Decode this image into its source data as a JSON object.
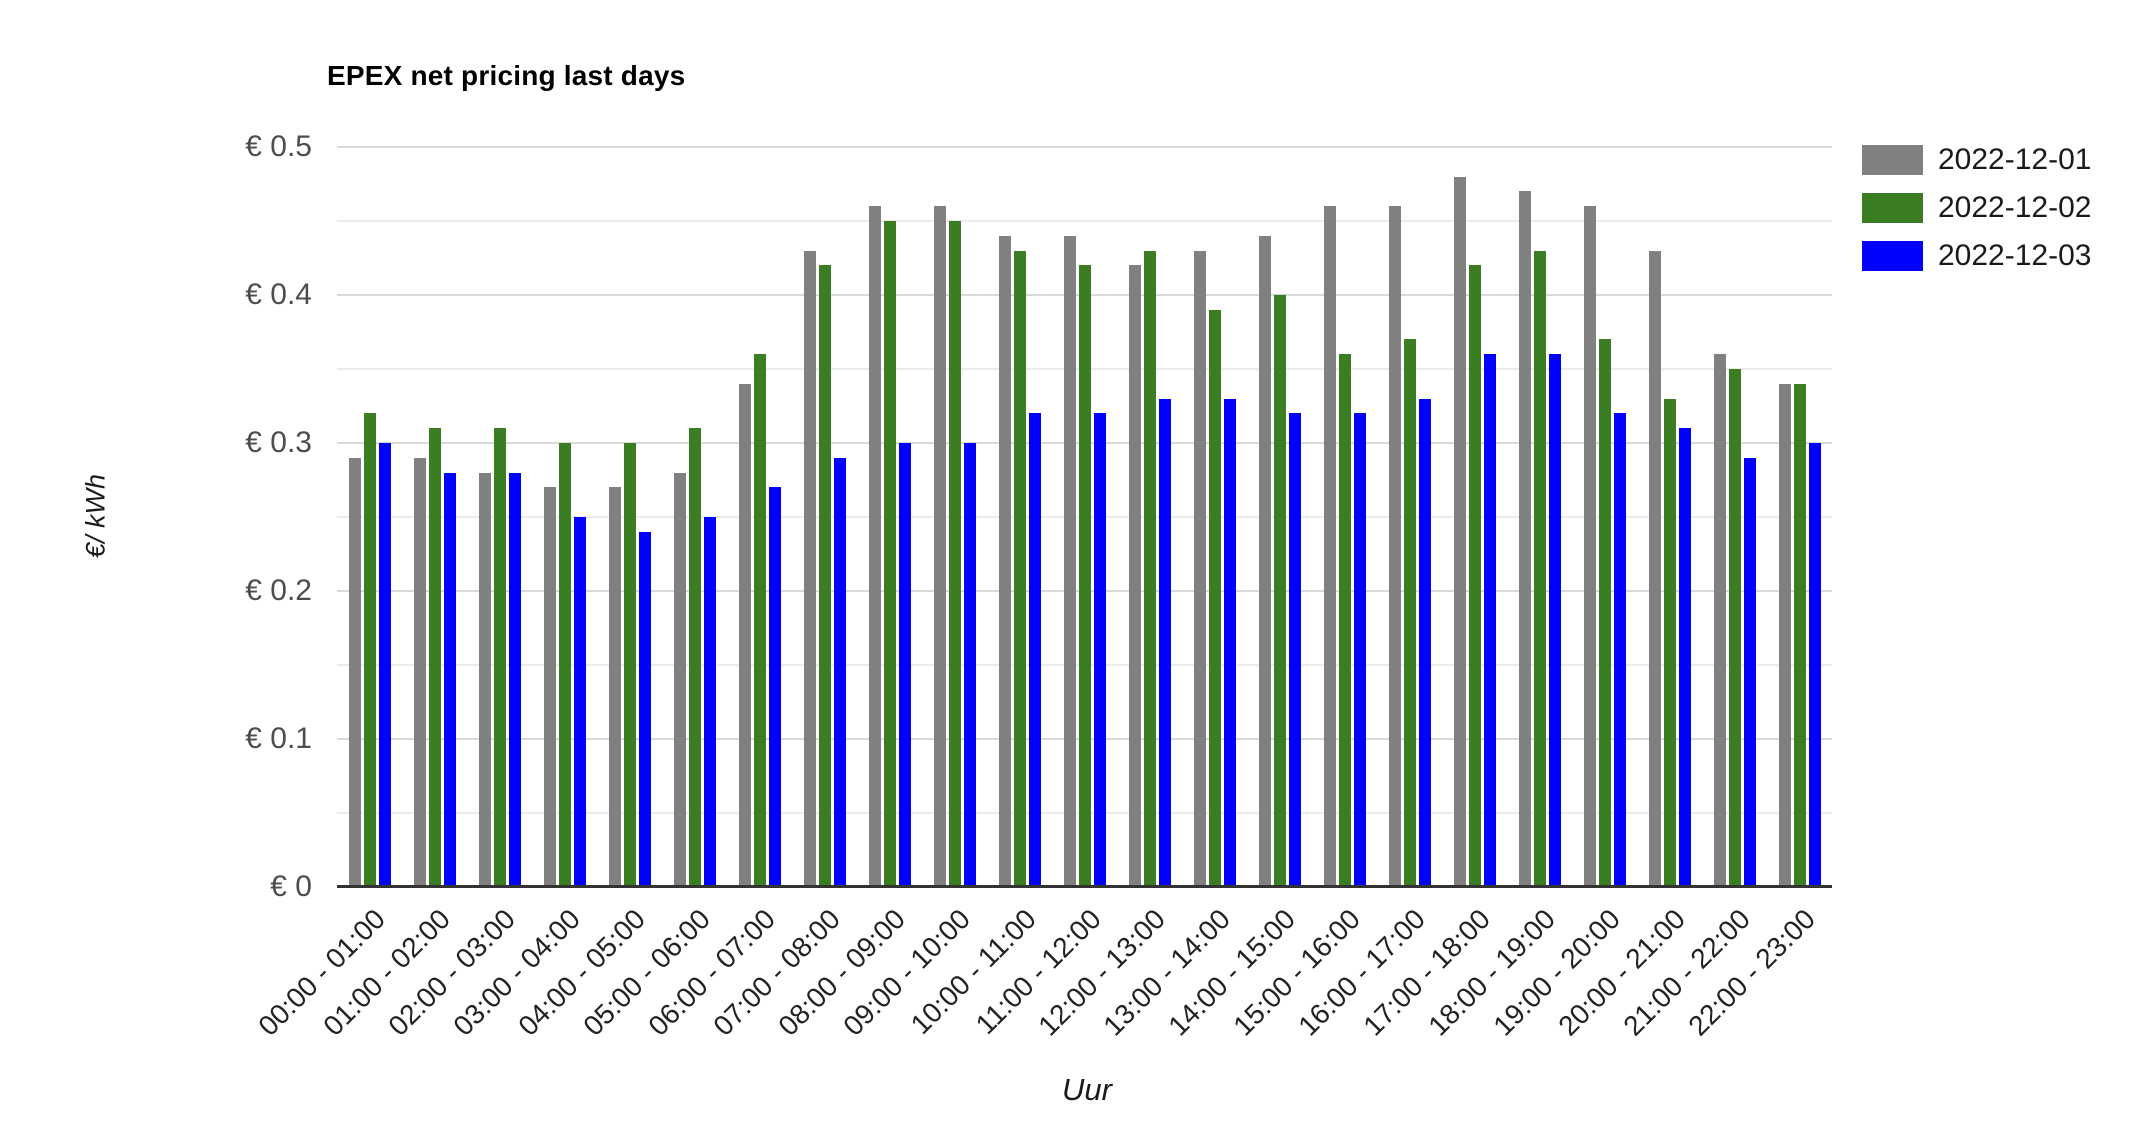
{
  "title": "EPEX net pricing last days",
  "axes": {
    "y_title": "€/ kWh",
    "x_title": "Uur",
    "y_tick_labels": [
      "€ 0.5",
      "€ 0.4",
      "€ 0.3",
      "€ 0.2",
      "€ 0.1",
      "€ 0"
    ]
  },
  "legend": {
    "items": [
      {
        "label": "2022-12-01",
        "color": "#808080"
      },
      {
        "label": "2022-12-02",
        "color": "#3a7d22"
      },
      {
        "label": "2022-12-03",
        "color": "#0000ff"
      }
    ]
  },
  "colors": {
    "grid_major": "#d9d9d9",
    "grid_minor": "#ececec",
    "axis_line": "#333333",
    "tick_text": "#4d4d4d"
  },
  "chart_data": {
    "type": "bar",
    "title": "EPEX net pricing last days",
    "xlabel": "Uur",
    "ylabel": "€/ kWh",
    "ylim": [
      0,
      0.5
    ],
    "y_major_step": 0.1,
    "y_minor_step": 0.05,
    "grid": true,
    "legend_position": "top-right",
    "categories": [
      "00:00 - 01:00",
      "01:00 - 02:00",
      "02:00 - 03:00",
      "03:00 - 04:00",
      "04:00 - 05:00",
      "05:00 - 06:00",
      "06:00 - 07:00",
      "07:00 - 08:00",
      "08:00 - 09:00",
      "09:00 - 10:00",
      "10:00 - 11:00",
      "11:00 - 12:00",
      "12:00 - 13:00",
      "13:00 - 14:00",
      "14:00 - 15:00",
      "15:00 - 16:00",
      "16:00 - 17:00",
      "17:00 - 18:00",
      "18:00 - 19:00",
      "19:00 - 20:00",
      "20:00 - 21:00",
      "21:00 - 22:00",
      "22:00 - 23:00"
    ],
    "series": [
      {
        "name": "2022-12-01",
        "color": "#808080",
        "values": [
          0.29,
          0.29,
          0.28,
          0.27,
          0.27,
          0.28,
          0.34,
          0.43,
          0.46,
          0.46,
          0.44,
          0.44,
          0.42,
          0.43,
          0.44,
          0.46,
          0.46,
          0.48,
          0.47,
          0.46,
          0.43,
          0.36,
          0.34
        ]
      },
      {
        "name": "2022-12-02",
        "color": "#3a7d22",
        "values": [
          0.32,
          0.31,
          0.31,
          0.3,
          0.3,
          0.31,
          0.36,
          0.42,
          0.45,
          0.45,
          0.43,
          0.42,
          0.43,
          0.39,
          0.4,
          0.36,
          0.37,
          0.42,
          0.43,
          0.37,
          0.33,
          0.35,
          0.34
        ]
      },
      {
        "name": "2022-12-03",
        "color": "#0000ff",
        "values": [
          0.3,
          0.28,
          0.28,
          0.25,
          0.24,
          0.25,
          0.27,
          0.29,
          0.3,
          0.3,
          0.32,
          0.32,
          0.33,
          0.33,
          0.32,
          0.32,
          0.33,
          0.36,
          0.36,
          0.32,
          0.31,
          0.29,
          0.3
        ]
      }
    ]
  }
}
